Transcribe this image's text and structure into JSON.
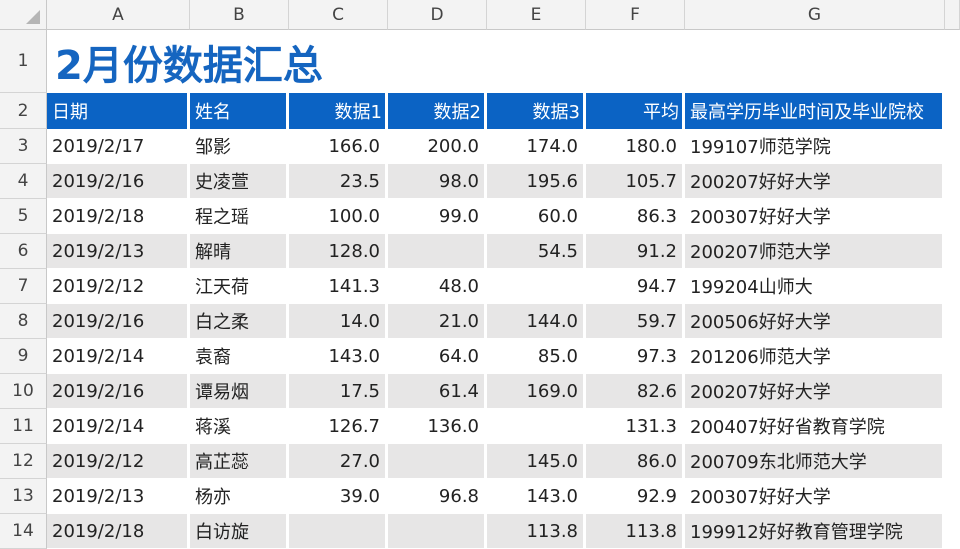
{
  "sheet": {
    "columns": [
      "A",
      "B",
      "C",
      "D",
      "E",
      "F",
      "G"
    ],
    "row_numbers": [
      "1",
      "2",
      "3",
      "4",
      "5",
      "6",
      "7",
      "8",
      "9",
      "10",
      "11",
      "12",
      "13",
      "14"
    ],
    "title": "2月份数据汇总",
    "headers": [
      "日期",
      "姓名",
      "数据1",
      "数据2",
      "数据3",
      "平均",
      "最高学历毕业时间及毕业院校"
    ],
    "rows": [
      [
        "2019/2/17",
        "邹影",
        "166.0",
        "200.0",
        "174.0",
        "180.0",
        "199107师范学院"
      ],
      [
        "2019/2/16",
        "史凌萱",
        "23.5",
        "98.0",
        "195.6",
        "105.7",
        "200207好好大学"
      ],
      [
        "2019/2/18",
        "程之瑶",
        "100.0",
        "99.0",
        "60.0",
        "86.3",
        "200307好好大学"
      ],
      [
        "2019/2/13",
        "解晴",
        "128.0",
        "",
        "54.5",
        "91.2",
        "200207师范大学"
      ],
      [
        "2019/2/12",
        "江天荷",
        "141.3",
        "48.0",
        "",
        "94.7",
        "199204山师大"
      ],
      [
        "2019/2/16",
        "白之柔",
        "14.0",
        "21.0",
        "144.0",
        "59.7",
        "200506好好大学"
      ],
      [
        "2019/2/14",
        "袁裔",
        "143.0",
        "64.0",
        "85.0",
        "97.3",
        "201206师范大学"
      ],
      [
        "2019/2/16",
        "谭易烟",
        "17.5",
        "61.4",
        "169.0",
        "82.6",
        "200207好好大学"
      ],
      [
        "2019/2/14",
        "蒋溪",
        "126.7",
        "136.0",
        "",
        "131.3",
        "200407好好省教育学院"
      ],
      [
        "2019/2/12",
        "高芷蕊",
        "27.0",
        "",
        "145.0",
        "86.0",
        "200709东北师范大学"
      ],
      [
        "2019/2/13",
        "杨亦",
        "39.0",
        "96.8",
        "143.0",
        "92.9",
        "200307好好大学"
      ],
      [
        "2019/2/18",
        "白访旋",
        "",
        "",
        "113.8",
        "113.8",
        "199912好好教育管理学院"
      ]
    ]
  },
  "colors": {
    "header_fill": "#0b63c4",
    "title": "#1565c0",
    "alt_row": "#e7e6e6"
  }
}
